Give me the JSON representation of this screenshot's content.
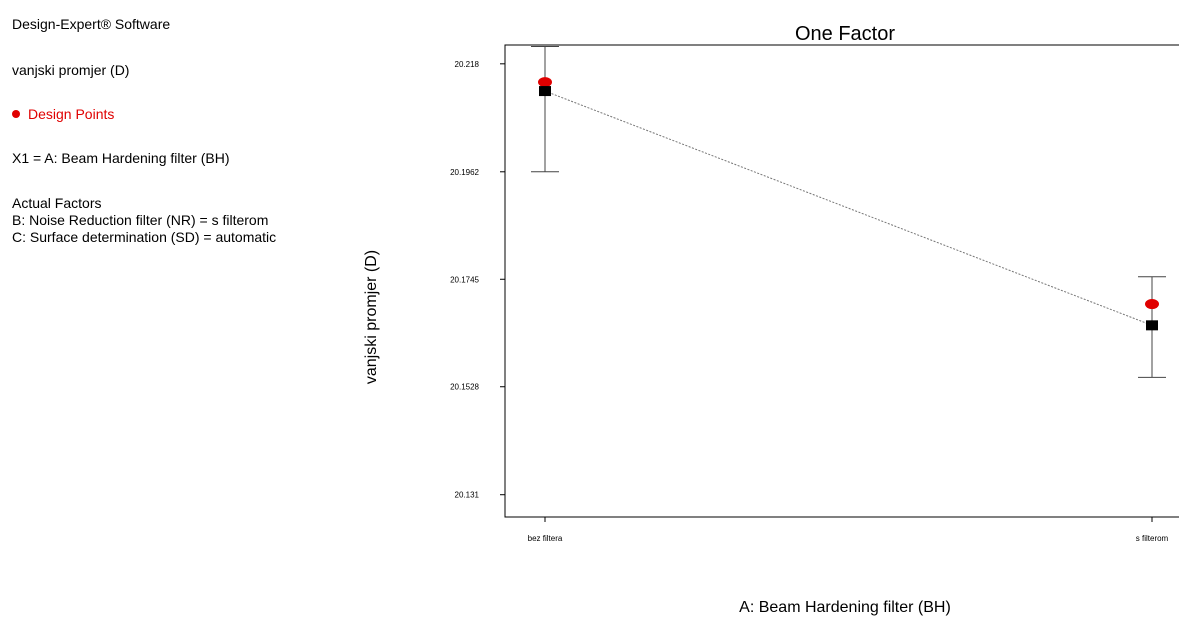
{
  "info": {
    "software": "Design-Expert® Software",
    "response": "vanjski promjer (D)",
    "legend_label": "Design Points",
    "x1": "X1 = A: Beam Hardening filter (BH)",
    "actual_factors_heading": "Actual Factors",
    "factor_b": "B: Noise Reduction filter (NR) = s filterom",
    "factor_c": "C: Surface determination (SD) = automatic"
  },
  "colors": {
    "design_point": "#e00000",
    "prediction": "#000000",
    "line": "#777777"
  },
  "chart_data": {
    "type": "line",
    "title": "One Factor",
    "xlabel": "A: Beam Hardening filter (BH)",
    "ylabel": "vanjski promjer (D)",
    "categories": [
      "bez filtera",
      "s filterom"
    ],
    "yticks": [
      20.131,
      20.1528,
      20.1745,
      20.1962,
      20.218
    ],
    "ytick_labels": [
      "20.131",
      "20.1528",
      "20.1745",
      "20.1962",
      "20.218"
    ],
    "ylim": [
      20.1265,
      20.2218
    ],
    "series": [
      {
        "values": [
          20.2125,
          20.1652
        ]
      },
      {
        "values": [
          20.2143,
          20.1695
        ]
      }
    ],
    "error_bars": [
      {
        "low": 20.1962,
        "high": 20.2215
      },
      {
        "low": 20.1547,
        "high": 20.175
      }
    ]
  }
}
